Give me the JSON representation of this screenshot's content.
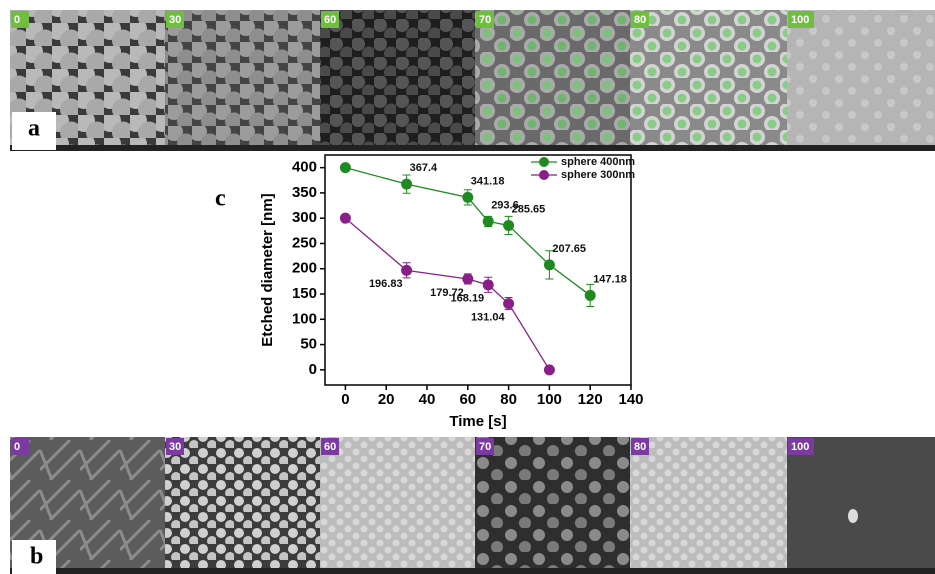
{
  "panels": {
    "a": {
      "label": "a",
      "tiles": [
        "0",
        "30",
        "60",
        "70",
        "80",
        "100"
      ]
    },
    "b": {
      "label": "b",
      "tiles": [
        "0",
        "30",
        "60",
        "70",
        "80",
        "100"
      ]
    }
  },
  "chart_data": {
    "type": "line",
    "panel_label": "c",
    "x_label": "Time [s]",
    "y_label": "Etched diameter [nm]",
    "xlim": [
      -10,
      140
    ],
    "xticks": [
      0,
      20,
      40,
      60,
      80,
      100,
      120,
      140
    ],
    "ylim": [
      -30,
      425
    ],
    "yticks": [
      0,
      50,
      100,
      150,
      200,
      250,
      300,
      350,
      400
    ],
    "legend": "top-right",
    "series": [
      {
        "name": "sphere 400nm",
        "color": "#1f8a1f",
        "x": [
          0,
          30,
          60,
          70,
          80,
          100,
          120
        ],
        "values": [
          400,
          367.4,
          341.18,
          293.6,
          285.65,
          207.65,
          147.18
        ],
        "errors": [
          5,
          18,
          15,
          10,
          18,
          28,
          22
        ],
        "value_labels": [
          null,
          "367.4",
          "341.18",
          "293.6",
          "285.65",
          "207.65",
          "147.18"
        ]
      },
      {
        "name": "sphere 300nm",
        "color": "#8a1f8a",
        "x": [
          0,
          30,
          60,
          70,
          80,
          100
        ],
        "values": [
          300,
          196.83,
          179.72,
          168.19,
          131.04,
          0
        ],
        "errors": [
          0,
          15,
          10,
          15,
          12,
          0
        ],
        "value_labels": [
          null,
          "196.83",
          "179.72",
          "168.19",
          "131.04",
          null
        ]
      }
    ]
  }
}
